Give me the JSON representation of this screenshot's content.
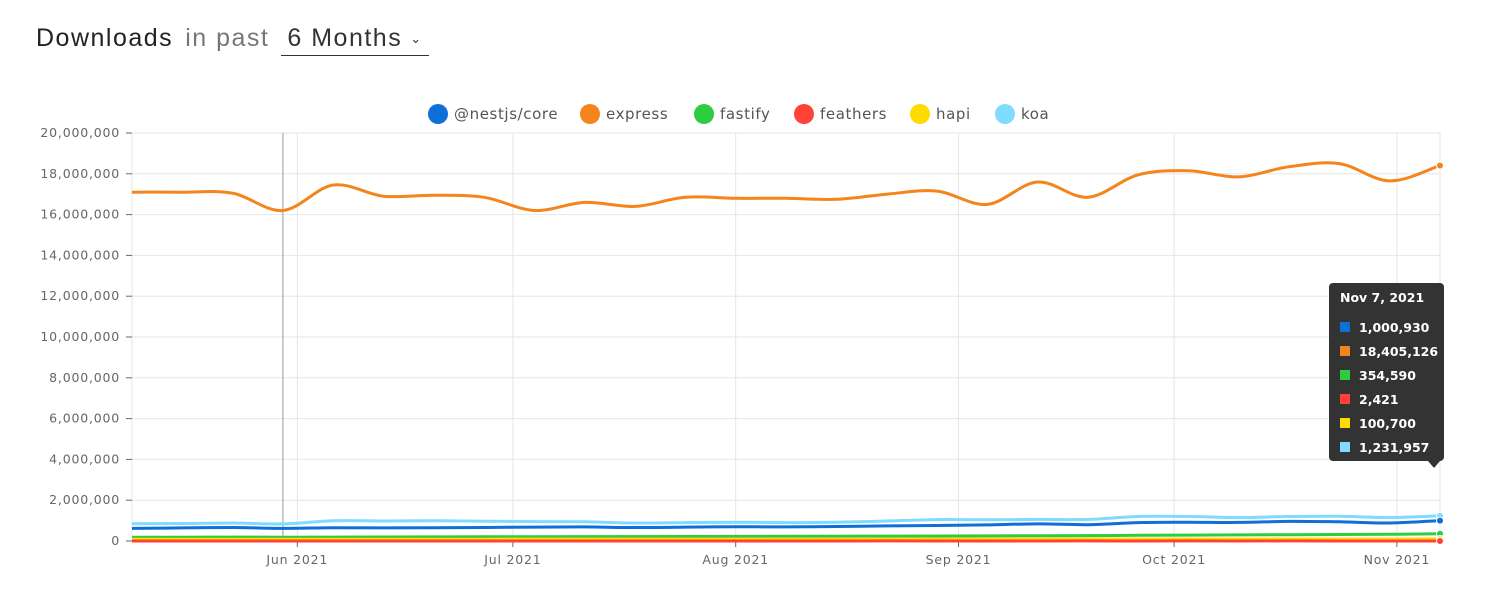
{
  "header": {
    "title": "Downloads",
    "in_past": "in past",
    "period": "6 Months"
  },
  "chart_data": {
    "type": "line",
    "x_axis": {
      "start": "2021-05-09",
      "end": "2021-11-07",
      "tick_labels": [
        {
          "date": "2021-06-01",
          "label": "Jun 2021"
        },
        {
          "date": "2021-07-01",
          "label": "Jul 2021"
        },
        {
          "date": "2021-08-01",
          "label": "Aug 2021"
        },
        {
          "date": "2021-09-01",
          "label": "Sep 2021"
        },
        {
          "date": "2021-10-01",
          "label": "Oct 2021"
        },
        {
          "date": "2021-11-01",
          "label": "Nov 2021"
        }
      ]
    },
    "y_axis": {
      "ylim": [
        0,
        20000000
      ],
      "ticks": [
        0,
        2000000,
        4000000,
        6000000,
        8000000,
        10000000,
        12000000,
        14000000,
        16000000,
        18000000,
        20000000
      ],
      "tick_labels": [
        "0",
        "2,000,000",
        "4,000,000",
        "6,000,000",
        "8,000,000",
        "10,000,000",
        "12,000,000",
        "14,000,000",
        "16,000,000",
        "18,000,000",
        "20,000,000"
      ]
    },
    "grid": true,
    "legend_position": "top",
    "x": [
      "2021-05-09",
      "2021-05-16",
      "2021-05-23",
      "2021-05-30",
      "2021-06-06",
      "2021-06-13",
      "2021-06-20",
      "2021-06-27",
      "2021-07-04",
      "2021-07-11",
      "2021-07-18",
      "2021-07-25",
      "2021-08-01",
      "2021-08-08",
      "2021-08-15",
      "2021-08-22",
      "2021-08-29",
      "2021-09-05",
      "2021-09-12",
      "2021-09-19",
      "2021-09-26",
      "2021-10-03",
      "2021-10-10",
      "2021-10-17",
      "2021-10-24",
      "2021-10-31",
      "2021-11-07"
    ],
    "series": [
      {
        "name": "@nestjs/core",
        "color": "#0e6fd8",
        "values": [
          620000,
          640000,
          660000,
          620000,
          650000,
          640000,
          650000,
          660000,
          680000,
          690000,
          660000,
          680000,
          700000,
          690000,
          710000,
          740000,
          760000,
          790000,
          840000,
          800000,
          900000,
          920000,
          910000,
          960000,
          940000,
          880000,
          1000930
        ]
      },
      {
        "name": "express",
        "color": "#f4841c",
        "values": [
          17100000,
          17100000,
          17050000,
          16200000,
          17450000,
          16900000,
          16950000,
          16850000,
          16200000,
          16600000,
          16400000,
          16850000,
          16800000,
          16800000,
          16750000,
          17000000,
          17150000,
          16500000,
          17600000,
          16850000,
          17950000,
          18150000,
          17850000,
          18350000,
          18500000,
          17650000,
          18405126
        ]
      },
      {
        "name": "fastify",
        "color": "#2ecc40",
        "values": [
          180000,
          185000,
          190000,
          185000,
          190000,
          195000,
          200000,
          205000,
          210000,
          215000,
          215000,
          220000,
          225000,
          230000,
          235000,
          240000,
          245000,
          250000,
          260000,
          265000,
          280000,
          290000,
          300000,
          310000,
          320000,
          330000,
          354590
        ]
      },
      {
        "name": "feathers",
        "color": "#ff4136",
        "values": [
          2100,
          2200,
          2300,
          2100,
          2200,
          2300,
          2400,
          2300,
          2200,
          2300,
          2400,
          2300,
          2400,
          2300,
          2400,
          2500,
          2400,
          2300,
          2400,
          2500,
          2400,
          2500,
          2400,
          2500,
          2400,
          2400,
          2421
        ]
      },
      {
        "name": "hapi",
        "color": "#ffdc00",
        "values": [
          85000,
          86000,
          87000,
          86000,
          88000,
          89000,
          90000,
          90000,
          91000,
          92000,
          92000,
          93000,
          94000,
          94000,
          95000,
          95000,
          96000,
          96000,
          97000,
          97000,
          98000,
          98000,
          99000,
          99000,
          100000,
          100000,
          100700
        ]
      },
      {
        "name": "koa",
        "color": "#7fdbff",
        "values": [
          850000,
          860000,
          880000,
          840000,
          990000,
          980000,
          990000,
          970000,
          950000,
          940000,
          880000,
          900000,
          920000,
          900000,
          920000,
          980000,
          1050000,
          1040000,
          1060000,
          1060000,
          1200000,
          1200000,
          1150000,
          1200000,
          1210000,
          1150000,
          1231957
        ]
      }
    ],
    "hover_line_date": "2021-05-30",
    "tooltip": {
      "date": "Nov 7, 2021",
      "values": [
        "1,000,930",
        "18,405,126",
        "354,590",
        "2,421",
        "100,700",
        "1,231,957"
      ]
    }
  }
}
